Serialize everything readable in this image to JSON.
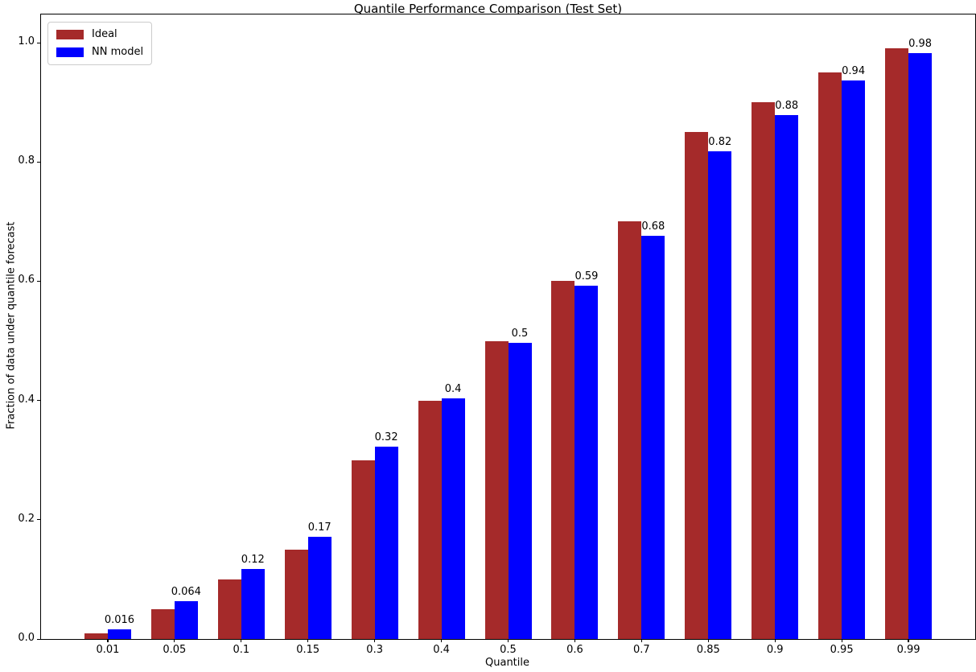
{
  "chart_data": {
    "type": "bar",
    "title": "Quantile Performance Comparison (Test Set)",
    "xlabel": "Quantile",
    "ylabel": "Fraction of data under quantile forecast",
    "categories": [
      "0.01",
      "0.05",
      "0.1",
      "0.15",
      "0.3",
      "0.4",
      "0.5",
      "0.6",
      "0.7",
      "0.85",
      "0.9",
      "0.95",
      "0.99"
    ],
    "series": [
      {
        "name": "Ideal",
        "color": "#a52a2a",
        "values": [
          0.01,
          0.05,
          0.1,
          0.15,
          0.3,
          0.4,
          0.5,
          0.6,
          0.7,
          0.85,
          0.9,
          0.95,
          0.99
        ]
      },
      {
        "name": "NN model",
        "color": "#0000ff",
        "values": [
          0.016,
          0.064,
          0.118,
          0.172,
          0.322,
          0.404,
          0.497,
          0.592,
          0.676,
          0.818,
          0.879,
          0.936,
          0.983
        ],
        "labels": [
          "0.016",
          "0.064",
          "0.12",
          "0.17",
          "0.32",
          "0.4",
          "0.5",
          "0.59",
          "0.68",
          "0.82",
          "0.88",
          "0.94",
          "0.98"
        ]
      }
    ],
    "ylim": [
      0,
      1.047
    ],
    "yticks": [
      "0.0",
      "0.2",
      "0.4",
      "0.6",
      "0.8",
      "1.0"
    ],
    "grid": false,
    "legend_position": "upper-left",
    "background_color": "#ffffff",
    "text_color": "#000000"
  }
}
